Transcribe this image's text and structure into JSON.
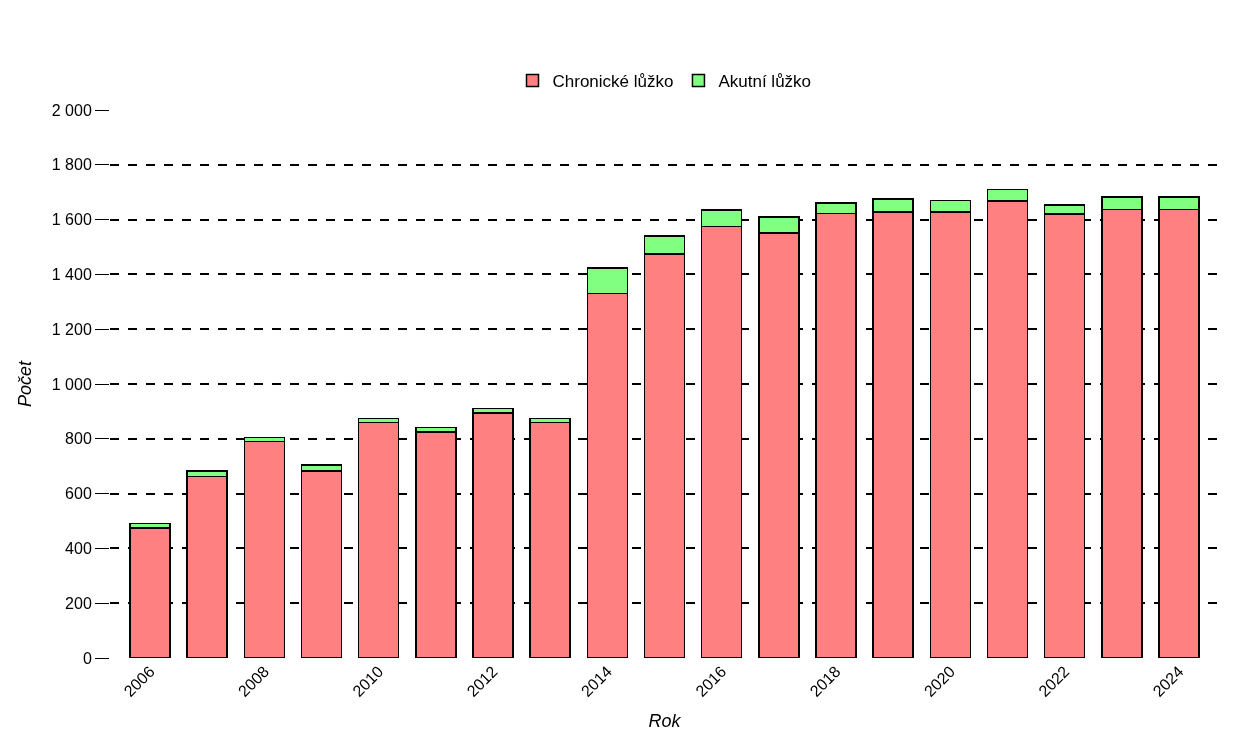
{
  "chart_data": {
    "type": "bar",
    "stacked": true,
    "xlabel": "Rok",
    "ylabel": "Počet",
    "x": [
      2006,
      2007,
      2008,
      2009,
      2010,
      2011,
      2012,
      2013,
      2014,
      2015,
      2016,
      2017,
      2018,
      2019,
      2020,
      2021,
      2022,
      2023,
      2024
    ],
    "series": [
      {
        "name": "Chronické lůžko",
        "color": "#ff8080",
        "values": [
          475,
          662,
          790,
          683,
          860,
          825,
          895,
          860,
          1330,
          1475,
          1575,
          1552,
          1622,
          1628,
          1628,
          1668,
          1621,
          1636,
          1636
        ]
      },
      {
        "name": "Akutní lůžko",
        "color": "#80ff80",
        "values": [
          15,
          21,
          15,
          22,
          15,
          16,
          15,
          15,
          93,
          65,
          60,
          58,
          39,
          47,
          41,
          41,
          33,
          47,
          47
        ]
      }
    ],
    "xlim": [
      2005.3,
      2024.7
    ],
    "xticks": [
      2006,
      2008,
      2010,
      2012,
      2014,
      2016,
      2018,
      2020,
      2022,
      2024
    ],
    "ylim": [
      0,
      2000
    ],
    "yticks": [
      0,
      200,
      400,
      600,
      800,
      {
        "value": 1000,
        "label": "1 000"
      },
      {
        "value": 1200,
        "label": "1 200"
      },
      {
        "value": 1400,
        "label": "1 400"
      },
      {
        "value": 1600,
        "label": "1 600"
      },
      {
        "value": 1800,
        "label": "1 800"
      },
      {
        "value": 2000,
        "label": "2 000"
      }
    ],
    "grid": "y",
    "legend": "top"
  }
}
